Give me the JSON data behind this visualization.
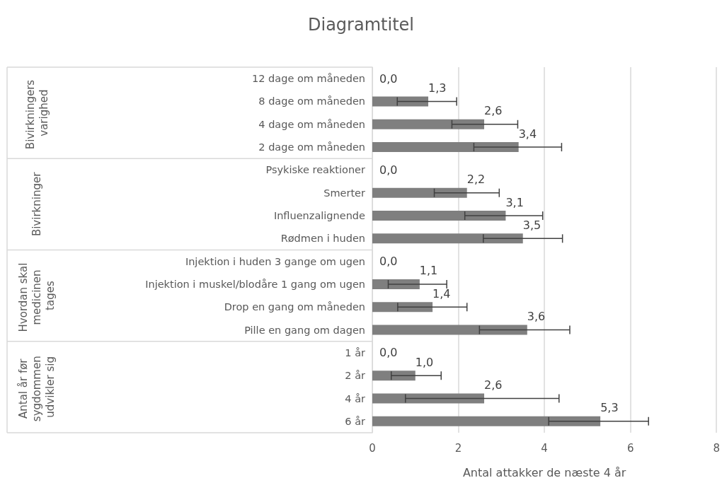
{
  "chart_data": {
    "type": "bar",
    "orientation": "horizontal",
    "title": "Diagramtitel",
    "xlabel": "Antal attakker de næste 4 år",
    "categories": [
      "12 dage om måneden",
      "8 dage om måneden",
      "4 dage om måneden",
      "2 dage om måneden",
      "Psykiske reaktioner",
      "Smerter",
      "Influenzalignende",
      "Rødmen i huden",
      "Injektion i huden 3 gange om ugen",
      "Injektion i muskel/blodåre 1 gang om ugen",
      "Drop en gang om måneden",
      "Pille en gang om dagen",
      "1 år",
      "2 år",
      "4 år",
      "6 år"
    ],
    "values": [
      0.0,
      1.3,
      2.6,
      3.4,
      0.0,
      2.2,
      3.1,
      3.5,
      0.0,
      1.1,
      1.4,
      3.6,
      0.0,
      1.0,
      2.6,
      5.3
    ],
    "value_labels": [
      "0,0",
      "1,3",
      "2,6",
      "3,4",
      "0,0",
      "2,2",
      "3,1",
      "3,5",
      "0,0",
      "1,1",
      "1,4",
      "3,6",
      "0,0",
      "1,0",
      "2,6",
      "5,3"
    ],
    "errors": [
      null,
      [
        0.58,
        1.96
      ],
      [
        1.85,
        3.38
      ],
      [
        2.36,
        4.4
      ],
      null,
      [
        1.44,
        2.95
      ],
      [
        2.15,
        3.96
      ],
      [
        2.58,
        4.42
      ],
      null,
      [
        0.37,
        1.73
      ],
      [
        0.59,
        2.2
      ],
      [
        2.49,
        4.59
      ],
      null,
      [
        0.44,
        1.6
      ],
      [
        0.77,
        4.34
      ],
      [
        4.1,
        6.42
      ]
    ],
    "color": "#7f7f7f",
    "xlim": [
      0,
      8
    ],
    "xticks": [
      0,
      2,
      4,
      6,
      8
    ],
    "grid": "x",
    "annotations": [
      "Bivirkningers varighed",
      "Bivirkninger",
      "Hvordan skal medicinen tages",
      "Antal år før sygdommen udvikler sig"
    ]
  }
}
